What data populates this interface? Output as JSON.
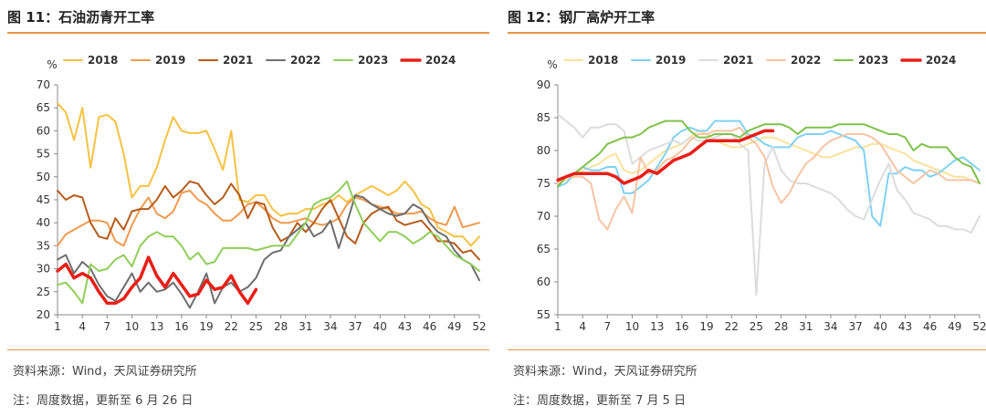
{
  "source_text": "资料来源：Wind，天风证券研究所",
  "panels": [
    {
      "title": "图 11：石油沥青开工率",
      "note": "注：周度数据，更新至 6 月 26 日"
    },
    {
      "title": "图 12：钢厂高炉开工率",
      "note": "注：周度数据，更新至 7 月 5 日"
    }
  ],
  "chart_data": [
    {
      "type": "line",
      "title": "石油沥青开工率",
      "ylabel": "%",
      "xlabel": "",
      "ylim": [
        20,
        70
      ],
      "yticks": [
        20,
        25,
        30,
        35,
        40,
        45,
        50,
        55,
        60,
        65,
        70
      ],
      "xlim": [
        1,
        52
      ],
      "xticks": [
        1,
        4,
        7,
        10,
        13,
        16,
        19,
        22,
        25,
        28,
        31,
        34,
        37,
        40,
        43,
        46,
        49,
        52
      ],
      "grid": false,
      "legend_position": "top",
      "series": [
        {
          "name": "2018",
          "color": "#f5c242",
          "width": 2,
          "values": [
            66,
            64,
            58,
            65,
            52,
            63,
            63.5,
            62,
            55,
            45.5,
            48,
            48,
            52,
            58,
            63,
            60,
            59.5,
            59.5,
            60,
            56,
            51.5,
            60,
            45,
            44.5,
            46,
            46,
            43,
            41.5,
            42,
            42,
            43,
            43,
            44,
            44.5,
            46,
            44.5,
            46,
            47,
            48,
            47,
            46,
            47,
            49,
            47,
            44,
            43,
            39,
            38,
            37,
            37,
            35,
            37
          ]
        },
        {
          "name": "2019",
          "color": "#ef9a4d",
          "width": 2,
          "values": [
            35,
            37.5,
            38.5,
            39.5,
            40.5,
            40.5,
            40,
            36,
            35,
            39.5,
            43,
            45.5,
            42,
            41,
            42.5,
            46.5,
            47,
            45,
            44,
            42,
            40.5,
            40.5,
            42,
            44,
            44.5,
            43,
            41,
            40,
            40,
            40.5,
            41,
            40,
            39.5,
            40,
            41,
            44,
            45.5,
            45,
            44,
            43.5,
            43,
            42,
            42,
            42,
            42.5,
            41,
            40,
            39.5,
            43.5,
            39,
            39.5,
            40
          ]
        },
        {
          "name": "2021",
          "color": "#b65c1b",
          "width": 2,
          "values": [
            47,
            45,
            46,
            45.5,
            40,
            37,
            36.5,
            41,
            38.5,
            42.5,
            43,
            43,
            45,
            48,
            45.5,
            47,
            49,
            48.5,
            46,
            44,
            45.5,
            48.5,
            46,
            41,
            44.5,
            44,
            39,
            36,
            37,
            40,
            38,
            40,
            43,
            45,
            41,
            37,
            35.5,
            40,
            42,
            43,
            43.5,
            40.5,
            39.5,
            40,
            40.5,
            38.5,
            36,
            36,
            35.5,
            33.5,
            34,
            32
          ]
        },
        {
          "name": "2022",
          "color": "#6e6e6e",
          "width": 2,
          "values": [
            32,
            33,
            29,
            31.5,
            30,
            26.5,
            24,
            23,
            26,
            29,
            25,
            27,
            25,
            25.5,
            27,
            24.5,
            21.5,
            25,
            29,
            22.5,
            26,
            27,
            25,
            26,
            28,
            32,
            33.5,
            34,
            37,
            38.5,
            40,
            37,
            38,
            40.5,
            34.5,
            40,
            46,
            45.5,
            44,
            43,
            42,
            41.5,
            42,
            44,
            43,
            40,
            38,
            37,
            34,
            32,
            31,
            27.5
          ]
        },
        {
          "name": "2023",
          "color": "#8fce5a",
          "width": 2,
          "values": [
            26.5,
            27,
            25,
            22.5,
            31,
            29.5,
            30,
            32,
            33,
            30.5,
            35,
            37,
            38,
            37,
            37,
            35,
            32,
            33.5,
            31,
            31.5,
            34.5,
            34.5,
            34.5,
            34.5,
            34,
            34.5,
            35,
            35,
            35,
            37.5,
            40,
            44,
            45,
            45.5,
            47,
            49,
            44,
            40,
            38,
            36,
            38,
            38,
            37,
            35.5,
            36.5,
            38,
            37,
            35,
            33,
            32,
            31,
            29.5
          ]
        },
        {
          "name": "2024",
          "color": "#e81f17",
          "width": 3.5,
          "values": [
            29.5,
            31,
            28,
            29,
            28,
            25,
            22.5,
            22.5,
            23.5,
            26,
            28,
            32.5,
            28.5,
            26,
            29,
            26.5,
            24,
            24.5,
            27.5,
            25.5,
            26,
            28.5,
            25,
            22.5,
            25.5
          ]
        }
      ]
    },
    {
      "type": "line",
      "title": "钢厂高炉开工率",
      "ylabel": "%",
      "xlabel": "",
      "ylim": [
        55,
        90
      ],
      "yticks": [
        55,
        60,
        65,
        70,
        75,
        80,
        85,
        90
      ],
      "xlim": [
        1,
        52
      ],
      "xticks": [
        1,
        4,
        7,
        10,
        13,
        16,
        19,
        22,
        25,
        28,
        31,
        34,
        37,
        40,
        43,
        46,
        49,
        52
      ],
      "grid": false,
      "legend_position": "top",
      "series": [
        {
          "name": "2018",
          "color": "#fbe29a",
          "width": 2,
          "values": [
            75,
            75.5,
            76,
            77,
            77.5,
            78,
            79,
            79.5,
            77,
            76.5,
            77,
            78,
            79,
            80,
            80.5,
            81,
            82,
            83,
            82.5,
            81.5,
            81,
            80.5,
            80.5,
            81,
            81.5,
            82,
            82,
            81.5,
            81,
            80.5,
            80,
            79.5,
            79,
            79,
            79.5,
            80,
            80.5,
            80.5,
            81,
            81,
            80.5,
            80,
            79.5,
            78.5,
            78,
            77.5,
            77,
            76.5,
            76,
            76,
            75.5,
            75
          ]
        },
        {
          "name": "2019",
          "color": "#7fd1f5",
          "width": 2,
          "values": [
            74.5,
            75,
            76.5,
            77.5,
            77,
            77,
            77.5,
            77.5,
            73.5,
            73.5,
            74.5,
            75.5,
            77.5,
            79.5,
            82,
            83,
            83.5,
            83,
            83,
            84.5,
            84.5,
            84.5,
            84.5,
            82.5,
            82,
            81,
            80.5,
            80.5,
            80.5,
            82,
            82.5,
            82.5,
            82.5,
            83,
            82.5,
            82,
            81.5,
            80,
            70,
            68.5,
            76.5,
            76.5,
            77.5,
            77,
            77,
            76,
            76.5,
            77.5,
            78.5,
            79,
            78,
            77
          ]
        },
        {
          "name": "2021",
          "color": "#dcdcdc",
          "width": 2,
          "values": [
            85.5,
            84.5,
            83.5,
            82,
            83.5,
            83.5,
            84,
            84,
            83,
            78,
            79,
            80,
            80.5,
            81,
            81.5,
            81,
            82,
            81.5,
            81.5,
            82,
            82.5,
            82.5,
            81,
            80,
            58,
            78,
            80.5,
            77,
            75.5,
            75,
            75,
            74.5,
            74,
            73.5,
            72.5,
            71,
            70,
            69.5,
            72.5,
            75.5,
            78,
            74,
            72.5,
            70.5,
            70,
            69.5,
            68.5,
            68.5,
            68,
            68,
            67.5,
            70
          ]
        },
        {
          "name": "2022",
          "color": "#f7c4a2",
          "width": 2,
          "values": [
            75,
            76,
            76,
            76,
            75,
            69.5,
            68,
            71,
            73,
            70.5,
            79,
            76.5,
            77,
            78.5,
            79,
            80,
            81.5,
            82.5,
            82.5,
            83,
            83,
            83,
            83.5,
            82,
            81,
            79,
            74.5,
            72,
            73.5,
            76,
            78,
            79,
            80.5,
            81.5,
            82,
            82.5,
            82.5,
            82.5,
            82,
            81,
            79,
            77,
            76,
            75,
            76,
            77,
            76.5,
            75.5,
            75.5,
            75.5,
            75.5,
            75
          ]
        },
        {
          "name": "2023",
          "color": "#7fc24a",
          "width": 2,
          "values": [
            74.5,
            76,
            76.5,
            77.5,
            78.5,
            79.5,
            81,
            81.5,
            82,
            82,
            82.5,
            83.5,
            84,
            84.5,
            84.5,
            84.5,
            83,
            82,
            82,
            82.5,
            82.5,
            82.5,
            82,
            83,
            83.5,
            84,
            84,
            84,
            83.5,
            82.5,
            83.5,
            83.5,
            83.5,
            83.5,
            84,
            84,
            84,
            84,
            83.5,
            83,
            82.5,
            82.5,
            82,
            80,
            81,
            80.5,
            80.5,
            80.5,
            79,
            78,
            77.5,
            75
          ]
        },
        {
          "name": "2024",
          "color": "#e81f17",
          "width": 3.5,
          "values": [
            75.5,
            76,
            76.5,
            76.5,
            76.5,
            76.5,
            76.5,
            76,
            75,
            75.5,
            76,
            77,
            76.5,
            77.5,
            78.5,
            79,
            79.5,
            80.5,
            81.5,
            81.5,
            81.5,
            81.5,
            81.5,
            82,
            82.5,
            83,
            83
          ]
        }
      ]
    }
  ]
}
